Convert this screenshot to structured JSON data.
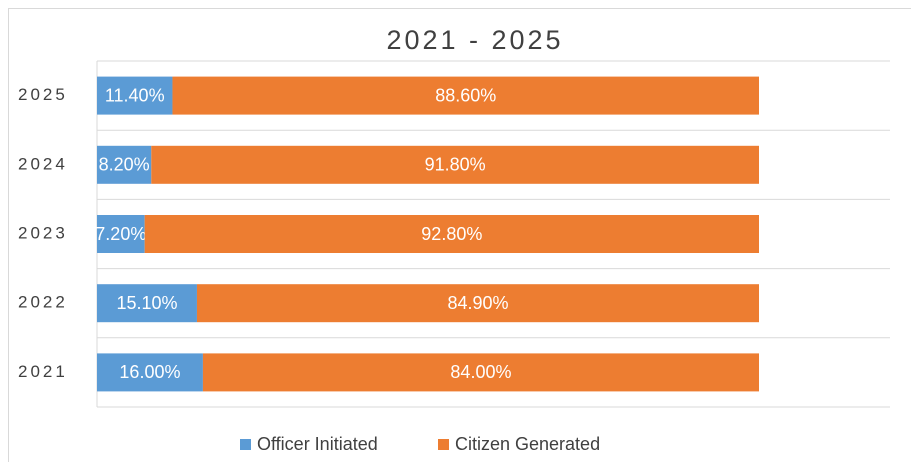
{
  "chart_data": {
    "type": "stacked_bar_horizontal",
    "title": "2021 - 2025",
    "categories": [
      "2025",
      "2024",
      "2023",
      "2022",
      "2021"
    ],
    "series": [
      {
        "name": "Officer Initiated",
        "color": "#5b9bd5",
        "values": [
          11.4,
          8.2,
          7.2,
          15.1,
          16.0
        ],
        "value_labels": [
          "11.40%",
          "8.20%",
          "7.20%",
          "15.10%",
          "16.00%"
        ]
      },
      {
        "name": "Citizen Generated",
        "color": "#ed7d31",
        "values": [
          88.6,
          91.8,
          92.8,
          84.9,
          84.0
        ],
        "value_labels": [
          "88.60%",
          "91.80%",
          "92.80%",
          "84.90%",
          "84.00%"
        ]
      }
    ],
    "xlim": [
      0,
      100
    ],
    "legend": "bottom"
  }
}
